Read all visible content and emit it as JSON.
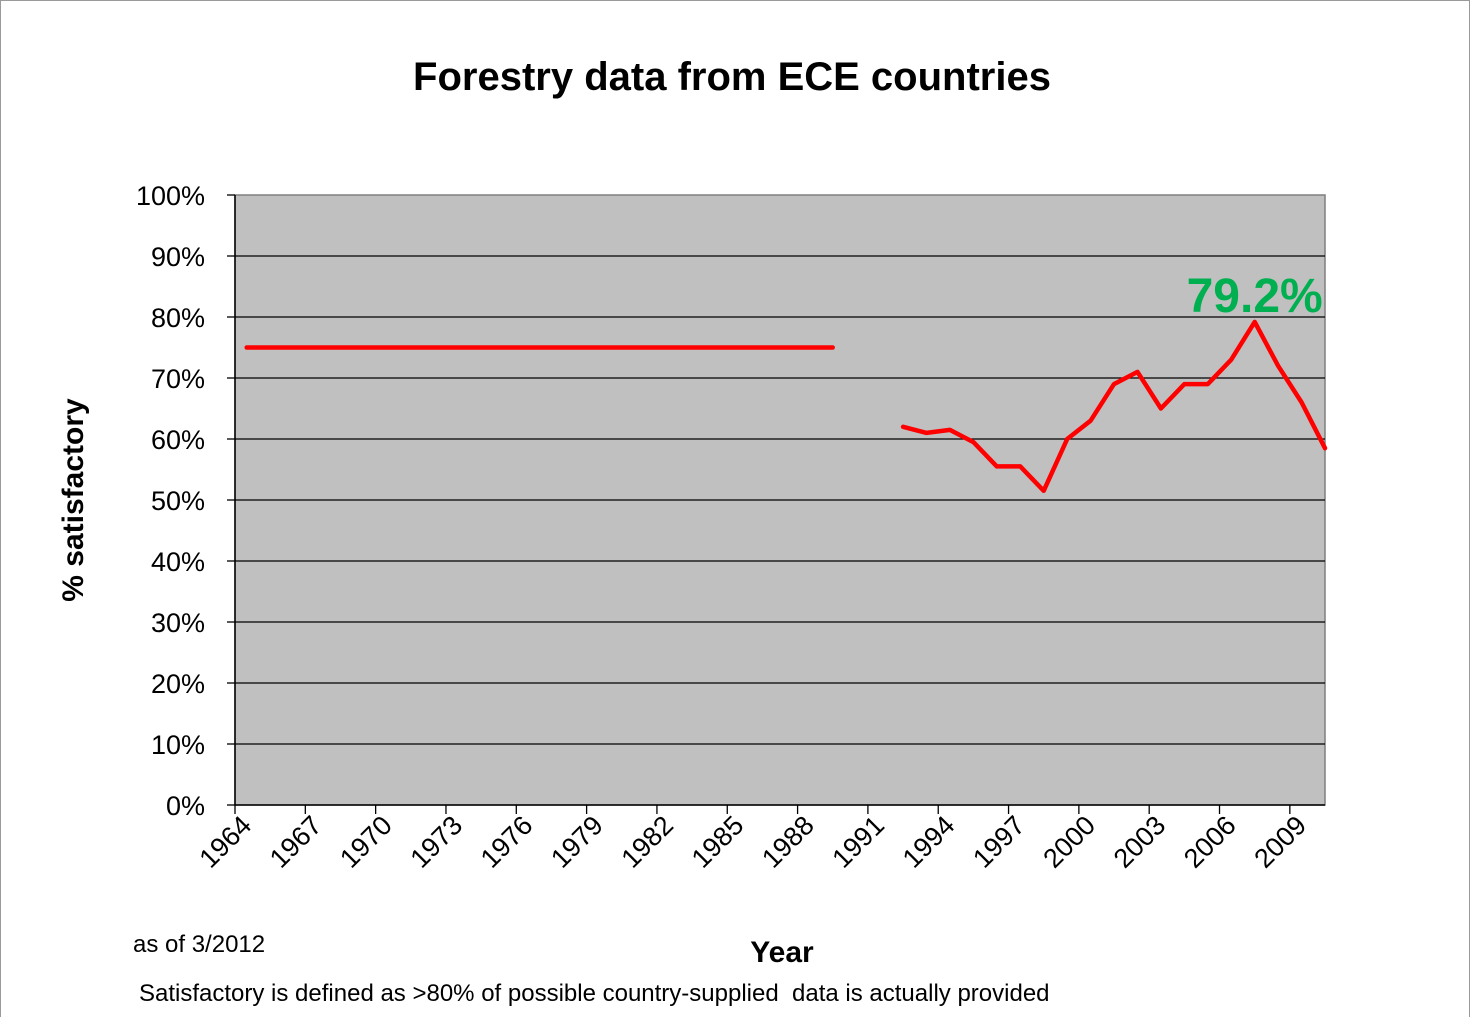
{
  "chart_data": {
    "type": "line",
    "title": "Forestry data from ECE countries",
    "xlabel": "Year",
    "ylabel": "% satisfactory",
    "ylim": [
      0,
      100
    ],
    "yticks": [
      "0%",
      "10%",
      "20%",
      "30%",
      "40%",
      "50%",
      "60%",
      "70%",
      "80%",
      "90%",
      "100%"
    ],
    "xticks": [
      "1964",
      "1967",
      "1970",
      "1973",
      "1976",
      "1979",
      "1982",
      "1985",
      "1988",
      "1991",
      "1994",
      "1997",
      "2000",
      "2003",
      "2006",
      "2009"
    ],
    "grid": true,
    "legend": "none",
    "colors": {
      "line": "#ff0000",
      "plot_background": "#c0c0c0",
      "peak_label": "#00b050"
    },
    "series": [
      {
        "x": [
          1964,
          1989
        ],
        "values": [
          75,
          75
        ]
      },
      {
        "x": [
          1992,
          1993,
          1994,
          1995,
          1996,
          1997,
          1998,
          1999,
          2000,
          2001,
          2002,
          2003,
          2004,
          2005,
          2006,
          2007,
          2008,
          2009,
          2010
        ],
        "values": [
          62,
          61,
          61.5,
          59.5,
          55.5,
          55.5,
          51.5,
          60,
          63,
          69,
          71,
          65,
          69,
          69,
          73,
          79.2,
          72,
          66,
          58.5
        ]
      }
    ],
    "annotations": [
      {
        "text": "79.2%",
        "x": 2007,
        "y": 79.2
      }
    ]
  },
  "notes": {
    "as_of": "as of 3/2012",
    "definition": "Satisfactory is defined as >80% of possible country-supplied  data is actually provided"
  }
}
